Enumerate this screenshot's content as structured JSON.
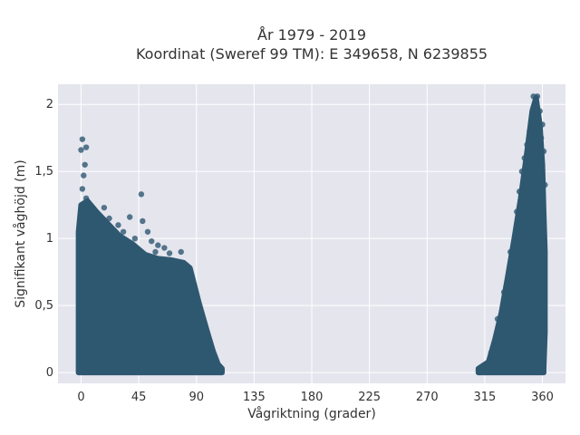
{
  "chart_data": {
    "type": "scatter",
    "title": "År 1979 - 2019",
    "subtitle": "Koordinat (Sweref 99 TM): E 349658, N 6239855",
    "xlabel": "Vågriktning (grader)",
    "ylabel": "Signifikant våghöjd (m)",
    "xlim": [
      -18,
      378
    ],
    "ylim": [
      -0.08,
      2.15
    ],
    "x_ticks": [
      0,
      45,
      90,
      135,
      180,
      225,
      270,
      315,
      360
    ],
    "x_tick_labels": [
      "0",
      "45",
      "90",
      "135",
      "180",
      "225",
      "270",
      "315",
      "360"
    ],
    "y_ticks": [
      0,
      0.5,
      1,
      1.5,
      2
    ],
    "y_tick_labels": [
      "0",
      "0,5",
      "1",
      "1,5",
      "2"
    ],
    "grid": true,
    "marker_color": "#2e5870",
    "background_color": "#e5e5ee",
    "envelope_a": [
      [
        -2,
        1.05
      ],
      [
        0,
        1.25
      ],
      [
        5,
        1.28
      ],
      [
        12,
        1.2
      ],
      [
        20,
        1.12
      ],
      [
        30,
        1.02
      ],
      [
        40,
        0.96
      ],
      [
        50,
        0.88
      ],
      [
        60,
        0.85
      ],
      [
        70,
        0.84
      ],
      [
        80,
        0.82
      ],
      [
        85,
        0.78
      ],
      [
        92,
        0.52
      ],
      [
        98,
        0.32
      ],
      [
        103,
        0.16
      ],
      [
        107,
        0.06
      ],
      [
        110,
        0.03
      ]
    ],
    "envelope_b": [
      [
        310,
        0.03
      ],
      [
        318,
        0.08
      ],
      [
        323,
        0.25
      ],
      [
        328,
        0.45
      ],
      [
        333,
        0.72
      ],
      [
        338,
        1.0
      ],
      [
        343,
        1.3
      ],
      [
        348,
        1.65
      ],
      [
        352,
        1.95
      ],
      [
        355,
        2.05
      ],
      [
        358,
        1.85
      ],
      [
        360,
        1.55
      ],
      [
        361,
        1.2
      ],
      [
        362,
        0.9
      ],
      [
        362,
        0.3
      ],
      [
        361,
        0.03
      ]
    ],
    "outliers": [
      {
        "x": 1,
        "y": 1.74
      },
      {
        "x": 0,
        "y": 1.66
      },
      {
        "x": 4,
        "y": 1.68
      },
      {
        "x": 3,
        "y": 1.55
      },
      {
        "x": 2,
        "y": 1.47
      },
      {
        "x": 1,
        "y": 1.37
      },
      {
        "x": 4,
        "y": 1.3
      },
      {
        "x": 47,
        "y": 1.33
      },
      {
        "x": 18,
        "y": 1.23
      },
      {
        "x": 22,
        "y": 1.15
      },
      {
        "x": 29,
        "y": 1.1
      },
      {
        "x": 38,
        "y": 1.16
      },
      {
        "x": 48,
        "y": 1.13
      },
      {
        "x": 55,
        "y": 0.98
      },
      {
        "x": 58,
        "y": 0.9
      },
      {
        "x": 65,
        "y": 0.93
      },
      {
        "x": 69,
        "y": 0.89
      },
      {
        "x": 78,
        "y": 0.9
      },
      {
        "x": 108,
        "y": 0.05
      },
      {
        "x": 10,
        "y": 1.2
      },
      {
        "x": 14,
        "y": 1.15
      },
      {
        "x": 33,
        "y": 1.05
      },
      {
        "x": 42,
        "y": 1.0
      },
      {
        "x": 52,
        "y": 1.05
      },
      {
        "x": 60,
        "y": 0.95
      },
      {
        "x": 353,
        "y": 2.06
      },
      {
        "x": 356,
        "y": 2.06
      },
      {
        "x": 358,
        "y": 1.95
      },
      {
        "x": 355,
        "y": 1.9
      },
      {
        "x": 348,
        "y": 1.7
      },
      {
        "x": 359,
        "y": 1.75
      },
      {
        "x": 350,
        "y": 1.8
      },
      {
        "x": 346,
        "y": 1.6
      },
      {
        "x": 340,
        "y": 1.2
      },
      {
        "x": 342,
        "y": 1.35
      },
      {
        "x": 361,
        "y": 1.65
      },
      {
        "x": 362,
        "y": 1.4
      },
      {
        "x": 335,
        "y": 0.9
      },
      {
        "x": 330,
        "y": 0.6
      },
      {
        "x": 325,
        "y": 0.4
      },
      {
        "x": 320,
        "y": 0.15
      },
      {
        "x": 360,
        "y": 1.85
      },
      {
        "x": 344,
        "y": 1.5
      }
    ]
  }
}
